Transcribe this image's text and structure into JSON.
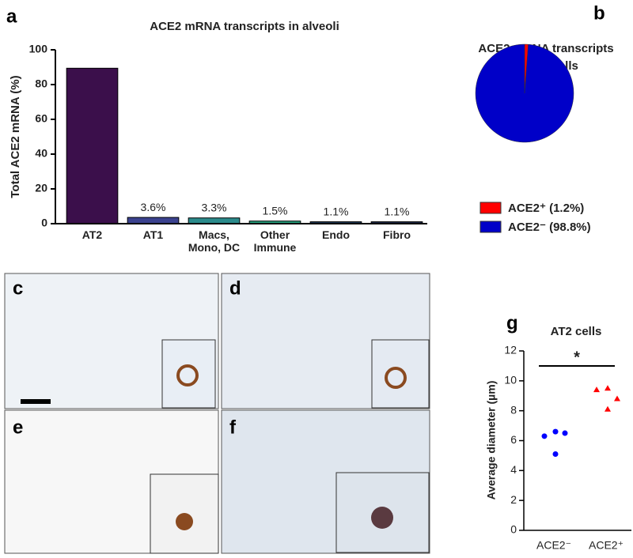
{
  "chart_data": [
    {
      "type": "bar",
      "panel": "a",
      "title": "ACE2 mRNA transcripts in alveoli",
      "ylabel": "Total ACE2 mRNA (%)",
      "categories": [
        "AT2",
        "AT1",
        "Macs, Mono, DC",
        "Other Immune",
        "Endo",
        "Fibro"
      ],
      "values": [
        89.4,
        3.6,
        3.3,
        1.5,
        1.1,
        1.1
      ],
      "value_labels": [
        null,
        "3.6%",
        "3.3%",
        "1.5%",
        "1.1%",
        "1.1%"
      ],
      "colors": [
        "#3b0f4b",
        "#3b428f",
        "#2b8b8c",
        "#25a07c",
        "#1e3a5a",
        "#1e2a4a"
      ],
      "ylim": [
        0,
        100
      ],
      "yticks": [
        0,
        20,
        40,
        60,
        80,
        100
      ]
    },
    {
      "type": "pie",
      "panel": "b",
      "title": "ACE2 mRNA transcripts in AT2 cells",
      "categories": [
        "ACE2⁺ (1.2%)",
        "ACE2⁻ (98.8%)"
      ],
      "values": [
        1.2,
        98.8
      ],
      "colors": [
        "#ff0000",
        "#0000c8"
      ]
    },
    {
      "type": "scatter",
      "panel": "g",
      "title": "AT2 cells",
      "ylabel": "Average diameter (µm)",
      "categories": [
        "ACE2⁻",
        "ACE2⁺"
      ],
      "values": [
        [
          6.3,
          6.6,
          6.5,
          5.1
        ],
        [
          9.4,
          9.5,
          8.8,
          8.1
        ]
      ],
      "colors": [
        "#0000ff",
        "#ff0000"
      ],
      "annotation": "*",
      "ylim": [
        0,
        12
      ],
      "yticks": [
        0,
        2,
        4,
        6,
        8,
        10,
        12
      ]
    }
  ],
  "images": [
    {
      "panel": "c"
    },
    {
      "panel": "d"
    },
    {
      "panel": "e"
    },
    {
      "panel": "f"
    }
  ]
}
